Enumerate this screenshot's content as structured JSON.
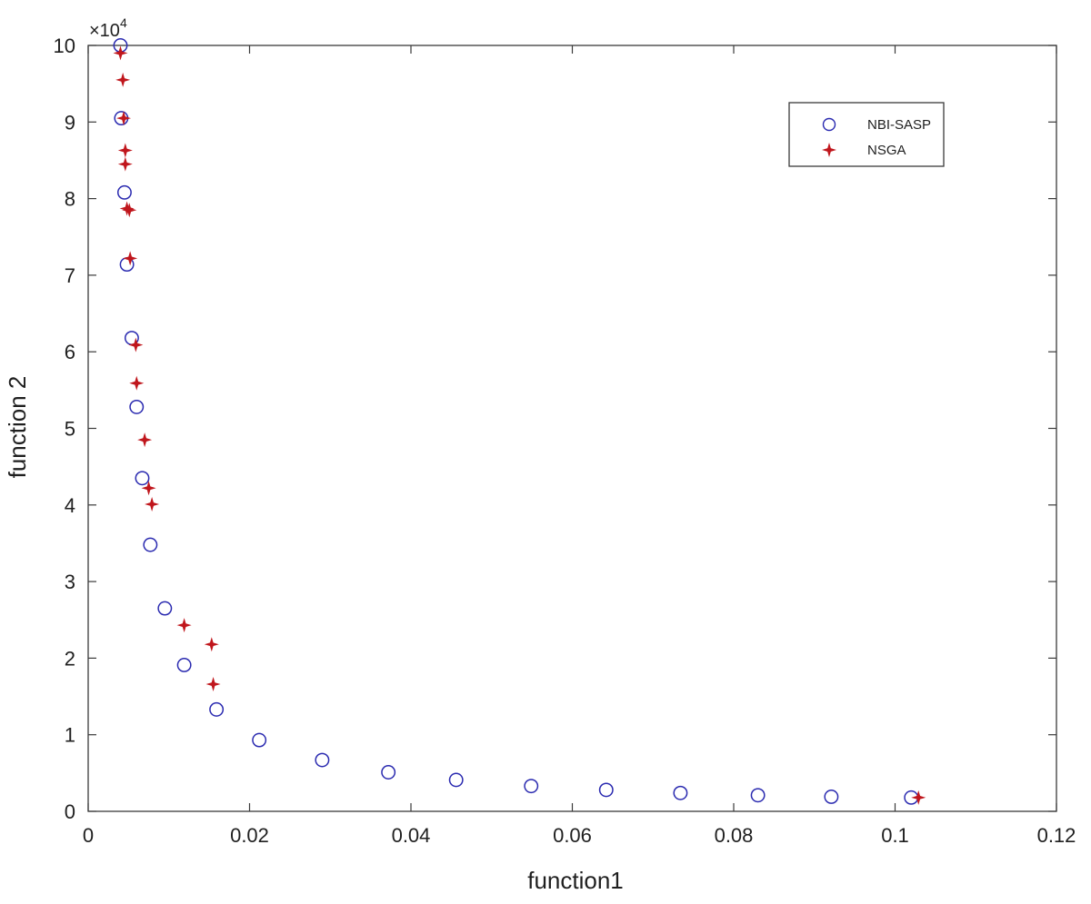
{
  "chart_data": {
    "type": "scatter",
    "title": "",
    "xlabel": "function1",
    "ylabel": "function 2",
    "xlim": [
      0,
      0.12
    ],
    "ylim": [
      0,
      10
    ],
    "y_multiplier_label": "×10",
    "y_multiplier_exponent": "4",
    "x_ticks": [
      "0",
      "0.02",
      "0.04",
      "0.06",
      "0.08",
      "0.1",
      "0.12"
    ],
    "y_ticks": [
      "0",
      "1",
      "2",
      "3",
      "4",
      "5",
      "6",
      "7",
      "8",
      "9",
      "10"
    ],
    "x_tick_values": [
      0,
      0.02,
      0.04,
      0.06,
      0.08,
      0.1,
      0.12
    ],
    "y_tick_values": [
      0,
      1,
      2,
      3,
      4,
      5,
      6,
      7,
      8,
      9,
      10
    ],
    "grid": false,
    "legend_position": "top-right",
    "series": [
      {
        "name": "NBI-SASP",
        "marker": "circle",
        "color": "#2a2ab0",
        "points": [
          [
            0.004,
            10.0
          ],
          [
            0.0041,
            9.05
          ],
          [
            0.0045,
            8.08
          ],
          [
            0.0048,
            7.14
          ],
          [
            0.0054,
            6.18
          ],
          [
            0.006,
            5.28
          ],
          [
            0.0067,
            4.35
          ],
          [
            0.0077,
            3.48
          ],
          [
            0.0095,
            2.65
          ],
          [
            0.0119,
            1.91
          ],
          [
            0.0159,
            1.33
          ],
          [
            0.0212,
            0.93
          ],
          [
            0.029,
            0.67
          ],
          [
            0.0372,
            0.51
          ],
          [
            0.0456,
            0.41
          ],
          [
            0.0549,
            0.33
          ],
          [
            0.0642,
            0.28
          ],
          [
            0.0734,
            0.24
          ],
          [
            0.083,
            0.21
          ],
          [
            0.0921,
            0.19
          ],
          [
            0.102,
            0.18
          ]
        ]
      },
      {
        "name": "NSGA",
        "marker": "star",
        "color": "#c0161c",
        "points": [
          [
            0.004,
            9.9
          ],
          [
            0.0043,
            9.55
          ],
          [
            0.0044,
            9.05
          ],
          [
            0.0046,
            8.63
          ],
          [
            0.0046,
            8.45
          ],
          [
            0.0048,
            7.87
          ],
          [
            0.0051,
            7.85
          ],
          [
            0.0052,
            7.22
          ],
          [
            0.0059,
            6.09
          ],
          [
            0.006,
            5.59
          ],
          [
            0.007,
            4.85
          ],
          [
            0.0075,
            4.22
          ],
          [
            0.0079,
            4.01
          ],
          [
            0.0119,
            2.43
          ],
          [
            0.0153,
            2.18
          ],
          [
            0.0155,
            1.66
          ],
          [
            0.1029,
            0.18
          ]
        ]
      }
    ]
  }
}
